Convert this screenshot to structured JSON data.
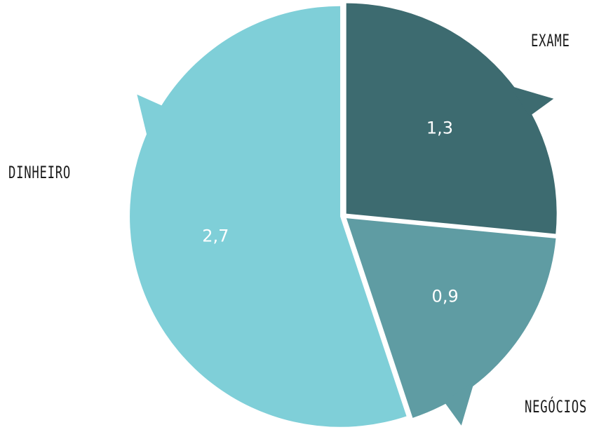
{
  "chart_data": {
    "type": "pie",
    "title": "",
    "categories": [
      "EXAME",
      "NEGÓCIOS",
      "DINHEIRO"
    ],
    "values": [
      1.3,
      0.9,
      2.7
    ],
    "value_labels": [
      "1,3",
      "0,9",
      "2,7"
    ],
    "colors": [
      "#3d6b70",
      "#5f9ca3",
      "#7fcfd8"
    ],
    "label_color": "#ffffff",
    "legend": "none"
  }
}
